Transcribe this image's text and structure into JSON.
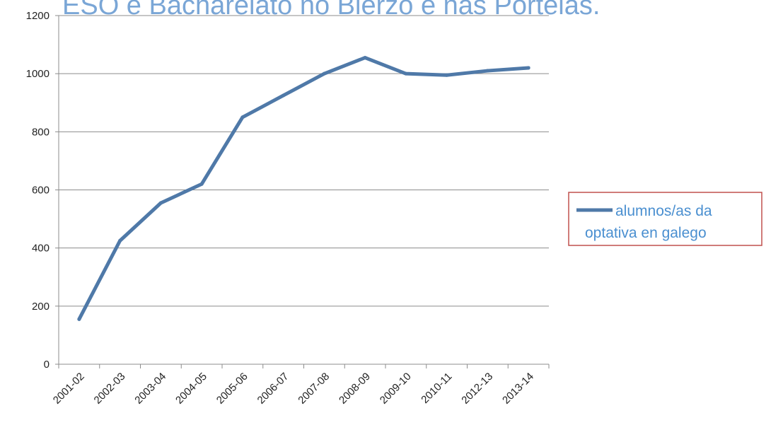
{
  "chart_data": {
    "type": "line",
    "title": "ESO e Bacharelato no Bierzo e nas Portelas.",
    "xlabel": "",
    "ylabel": "",
    "categories": [
      "2001-02",
      "2002-03",
      "2003-04",
      "2004-05",
      "2005-06",
      "2006-07",
      "2007-08",
      "2008-09",
      "2009-10",
      "2010-11",
      "2012-13",
      "2013-14"
    ],
    "series": [
      {
        "name": "alumnos/as da optativa en galego",
        "values": [
          155,
          425,
          555,
          620,
          850,
          925,
          1000,
          1055,
          1000,
          995,
          1010,
          1020
        ]
      }
    ],
    "yticks": [
      "0",
      "200",
      "400",
      "600",
      "800",
      "1000",
      "1200"
    ],
    "ylim": [
      0,
      1200
    ],
    "grid": "horizontal",
    "legend_position": "right",
    "legend_lines": [
      "alumnos/as da",
      "optativa en galego"
    ],
    "colors": {
      "series": "#4f79a8",
      "title": "#7aa6d6",
      "legend_text": "#4a8fd0",
      "legend_border": "#c0504d",
      "grid": "#8c8c8c",
      "axis": "#8c8c8c"
    }
  }
}
